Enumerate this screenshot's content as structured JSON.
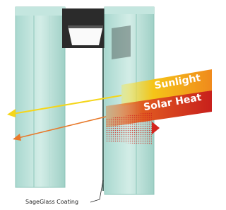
{
  "labels": {
    "sunlight": "Sunlight",
    "solar_heat": "Solar Heat",
    "coating": "SageGlass Coating"
  }
}
